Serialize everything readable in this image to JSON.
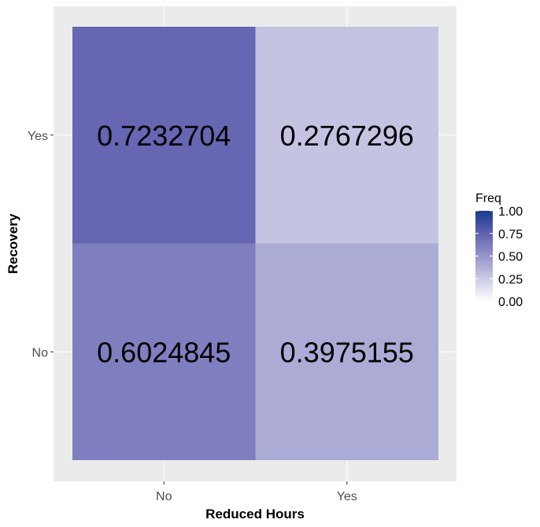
{
  "chart_data": {
    "type": "heatmap",
    "xlabel": "Reduced Hours",
    "ylabel": "Recovery",
    "x_categories": [
      "No",
      "Yes"
    ],
    "y_categories": [
      "No",
      "Yes"
    ],
    "cells": [
      {
        "x": "No",
        "y": "Yes",
        "value": 0.7232704,
        "label": "0.7232704"
      },
      {
        "x": "Yes",
        "y": "Yes",
        "value": 0.2767296,
        "label": "0.2767296"
      },
      {
        "x": "No",
        "y": "No",
        "value": 0.6024845,
        "label": "0.6024845"
      },
      {
        "x": "Yes",
        "y": "No",
        "value": 0.3975155,
        "label": "0.3975155"
      }
    ],
    "legend": {
      "title": "Freq",
      "range": [
        0,
        1
      ],
      "ticks": [
        "0.00",
        "0.25",
        "0.50",
        "0.75",
        "1.00"
      ],
      "low_color": "#ffffff",
      "high_color": "#1a3a8f",
      "placement": "right"
    },
    "panel_background": "#ebebeb",
    "grid": true
  }
}
